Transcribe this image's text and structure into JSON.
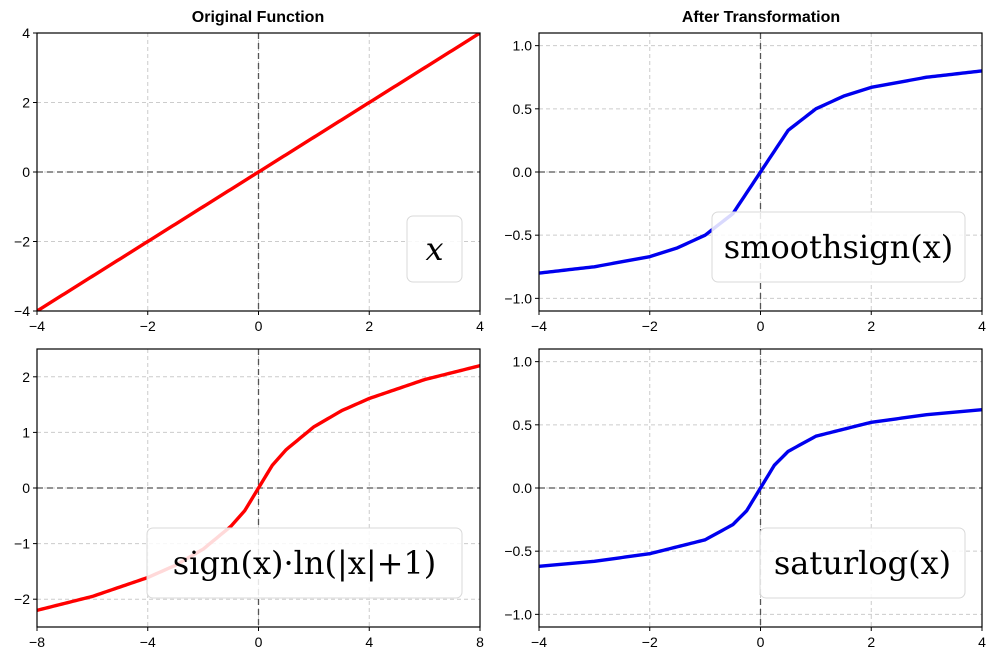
{
  "titles": {
    "left": "Original Function",
    "right": "After Transformation"
  },
  "chart_data": [
    {
      "id": "x",
      "type": "line",
      "legend": "x",
      "color": "#ff0000",
      "xlim": [
        -4,
        4
      ],
      "ylim": [
        -4,
        4
      ],
      "xticks": [
        -4,
        -2,
        0,
        2,
        4
      ],
      "yticks": [
        -4,
        -2,
        0,
        2,
        4
      ],
      "xtick_labels": [
        "−4",
        "−2",
        "0",
        "2",
        "4"
      ],
      "ytick_labels": [
        "−4",
        "−2",
        "0",
        "2",
        "4"
      ],
      "legend_position": "lower-right",
      "grid": true,
      "x": [
        -4,
        0,
        4
      ],
      "y": [
        -4,
        0,
        4
      ]
    },
    {
      "id": "smoothsign",
      "type": "line",
      "legend": "smoothsign(x)",
      "color": "#0000ee",
      "xlim": [
        -4,
        4
      ],
      "ylim": [
        -1.1,
        1.1
      ],
      "xticks": [
        -4,
        -2,
        0,
        2,
        4
      ],
      "yticks": [
        -1.0,
        -0.5,
        0.0,
        0.5,
        1.0
      ],
      "xtick_labels": [
        "−4",
        "−2",
        "0",
        "2",
        "4"
      ],
      "ytick_labels": [
        "−1.0",
        "−0.5",
        "0.0",
        "0.5",
        "1.0"
      ],
      "legend_position": "lower-right",
      "grid": true,
      "x": [
        -4,
        -3,
        -2,
        -1.5,
        -1,
        -0.5,
        0,
        0.5,
        1,
        1.5,
        2,
        3,
        4
      ],
      "y": [
        -0.8,
        -0.75,
        -0.67,
        -0.6,
        -0.5,
        -0.33,
        0.0,
        0.33,
        0.5,
        0.6,
        0.67,
        0.75,
        0.8
      ]
    },
    {
      "id": "signlog",
      "type": "line",
      "legend": "sign(x)·ln(|x|+1)",
      "color": "#ff0000",
      "xlim": [
        -8,
        8
      ],
      "ylim": [
        -2.5,
        2.5
      ],
      "xticks": [
        -8,
        -4,
        0,
        4,
        8
      ],
      "yticks": [
        -2,
        -1,
        0,
        1,
        2
      ],
      "xtick_labels": [
        "−8",
        "−4",
        "0",
        "4",
        "8"
      ],
      "ytick_labels": [
        "−2",
        "−1",
        "0",
        "1",
        "2"
      ],
      "legend_position": "lower-right",
      "grid": true,
      "x": [
        -8,
        -6,
        -4,
        -3,
        -2,
        -1,
        -0.5,
        0,
        0.5,
        1,
        2,
        3,
        4,
        6,
        8
      ],
      "y": [
        -2.2,
        -1.95,
        -1.61,
        -1.39,
        -1.1,
        -0.69,
        -0.41,
        0.0,
        0.41,
        0.69,
        1.1,
        1.39,
        1.61,
        1.95,
        2.2
      ]
    },
    {
      "id": "saturlog",
      "type": "line",
      "legend": "saturlog(x)",
      "color": "#0000ee",
      "xlim": [
        -4,
        4
      ],
      "ylim": [
        -1.1,
        1.1
      ],
      "xticks": [
        -4,
        -2,
        0,
        2,
        4
      ],
      "yticks": [
        -1.0,
        -0.5,
        0.0,
        0.5,
        1.0
      ],
      "xtick_labels": [
        "−4",
        "−2",
        "0",
        "2",
        "4"
      ],
      "ytick_labels": [
        "−1.0",
        "−0.5",
        "0.0",
        "0.5",
        "1.0"
      ],
      "legend_position": "lower-right",
      "grid": true,
      "x": [
        -4,
        -3,
        -2,
        -1,
        -0.5,
        -0.25,
        0,
        0.25,
        0.5,
        1,
        2,
        3,
        4
      ],
      "y": [
        -0.62,
        -0.58,
        -0.52,
        -0.41,
        -0.29,
        -0.18,
        0.0,
        0.18,
        0.29,
        0.41,
        0.52,
        0.58,
        0.62
      ]
    }
  ]
}
